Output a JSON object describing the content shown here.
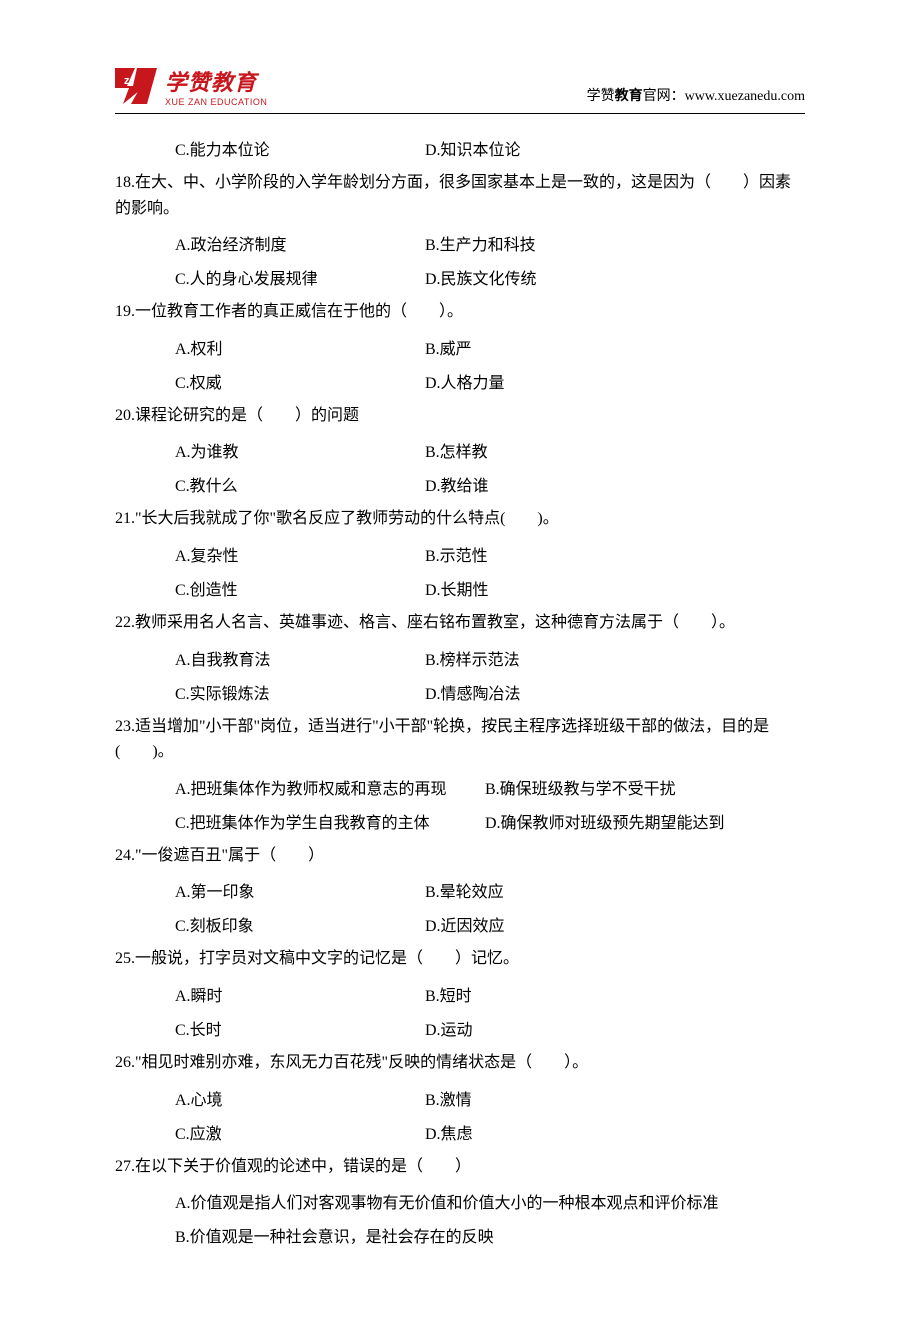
{
  "header": {
    "logo_cn": "学赞教育",
    "logo_en": "XUE ZAN EDUCATION",
    "right_prefix": "学赞",
    "right_bold": "教育",
    "right_suffix": "官网：www.xuezanedu.com"
  },
  "pre_options": {
    "c": "C.能力本位论",
    "d": "D.知识本位论"
  },
  "questions": [
    {
      "num": "18",
      "text": "18.在大、中、小学阶段的入学年龄划分方面，很多国家基本上是一致的，这是因为（　　）因素的影响。",
      "rows": [
        {
          "a": "A.政治经济制度",
          "b": "B.生产力和科技"
        },
        {
          "a": "C.人的身心发展规律",
          "b": "D.民族文化传统"
        }
      ]
    },
    {
      "num": "19",
      "text": "19.一位教育工作者的真正威信在于他的（　　）。",
      "rows": [
        {
          "a": "A.权利",
          "b": "B.威严"
        },
        {
          "a": "C.权威",
          "b": "D.人格力量"
        }
      ]
    },
    {
      "num": "20",
      "text": "20.课程论研究的是（　　）的问题",
      "rows": [
        {
          "a": "A.为谁教",
          "b": "B.怎样教"
        },
        {
          "a": "C.教什么",
          "b": "D.教给谁"
        }
      ]
    },
    {
      "num": "21",
      "text": "21.\"长大后我就成了你\"歌名反应了教师劳动的什么特点(　　)。",
      "rows": [
        {
          "a": "A.复杂性",
          "b": "B.示范性"
        },
        {
          "a": "C.创造性",
          "b": "D.长期性"
        }
      ]
    },
    {
      "num": "22",
      "text": "22.教师采用名人名言、英雄事迹、格言、座右铭布置教室，这种德育方法属于（　　）。",
      "rows": [
        {
          "a": "A.自我教育法",
          "b": "B.榜样示范法"
        },
        {
          "a": "C.实际锻炼法",
          "b": "D.情感陶冶法"
        }
      ]
    },
    {
      "num": "23",
      "text": "23.适当增加\"小干部\"岗位，适当进行\"小干部\"轮换，按民主程序选择班级干部的做法，目的是(　　)。",
      "rows": [
        {
          "a": "A.把班集体作为教师权威和意志的再现",
          "b": "B.确保班级教与学不受干扰"
        },
        {
          "a": "C.把班集体作为学生自我教育的主体",
          "b": "D.确保教师对班级预先期望能达到"
        }
      ],
      "wide": true
    },
    {
      "num": "24",
      "text": "24.\"一俊遮百丑\"属于（　　）",
      "rows": [
        {
          "a": "A.第一印象",
          "b": "B.晕轮效应"
        },
        {
          "a": "C.刻板印象",
          "b": "D.近因效应"
        }
      ]
    },
    {
      "num": "25",
      "text": "25.一般说，打字员对文稿中文字的记忆是（　　）记忆。",
      "rows": [
        {
          "a": "A.瞬时",
          "b": "B.短时"
        },
        {
          "a": "C.长时",
          "b": "D.运动"
        }
      ]
    },
    {
      "num": "26",
      "text": "26.\"相见时难别亦难，东风无力百花残\"反映的情绪状态是（　　）。",
      "rows": [
        {
          "a": "A.心境",
          "b": "B.激情"
        },
        {
          "a": "C.应激",
          "b": "D.焦虑"
        }
      ]
    },
    {
      "num": "27",
      "text": "27.在以下关于价值观的论述中，错误的是（　　）",
      "singles": [
        "A.价值观是指人们对客观事物有无价值和价值大小的一种根本观点和评价标准",
        "B.价值观是一种社会意识，是社会存在的反映"
      ]
    }
  ]
}
